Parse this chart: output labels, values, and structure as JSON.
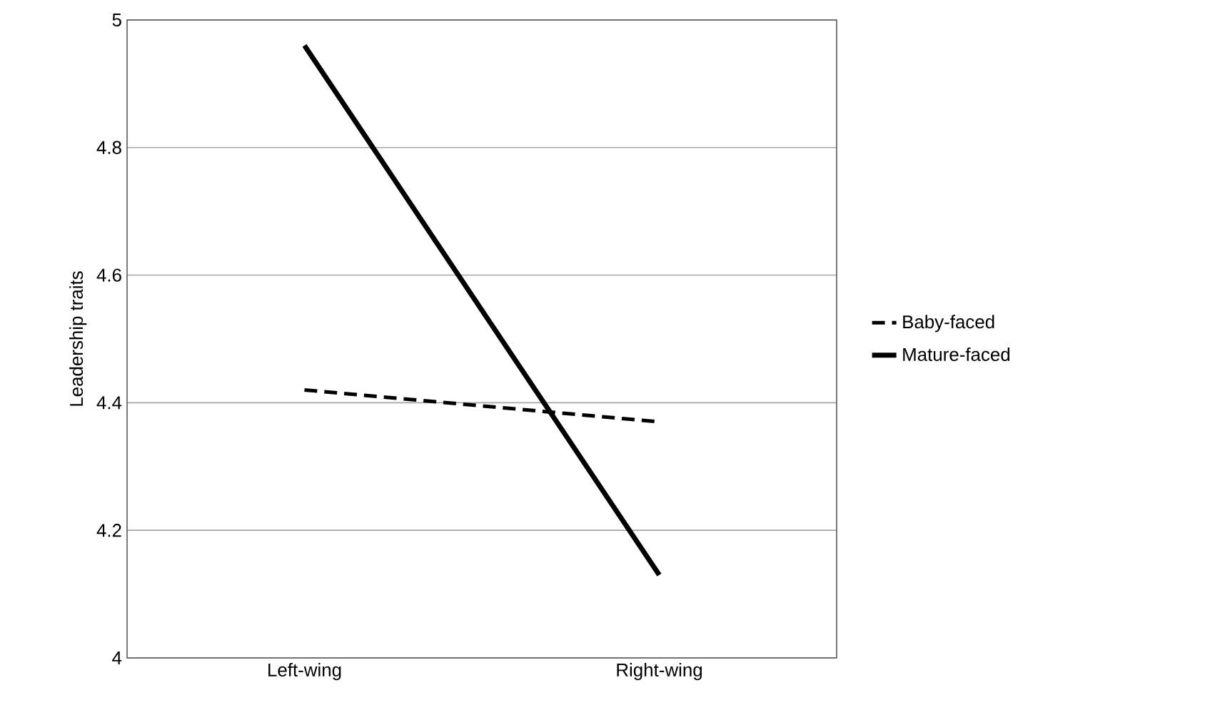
{
  "chart_data": {
    "type": "line",
    "ylabel": "Leadership traits",
    "categories": [
      "Left-wing",
      "Right-wing"
    ],
    "series": [
      {
        "name": "Baby-faced",
        "color": "#000000",
        "values": [
          4.42,
          4.37
        ],
        "line_style": "dashed"
      },
      {
        "name": "Mature-faced",
        "color": "#000000",
        "values": [
          4.96,
          4.13
        ],
        "line_style": "solid"
      }
    ],
    "ylim": [
      4,
      5
    ],
    "yticks": [
      4,
      4.2,
      4.4,
      4.6,
      4.8,
      5
    ],
    "grid": "y",
    "legend": "right",
    "marker": "none"
  }
}
